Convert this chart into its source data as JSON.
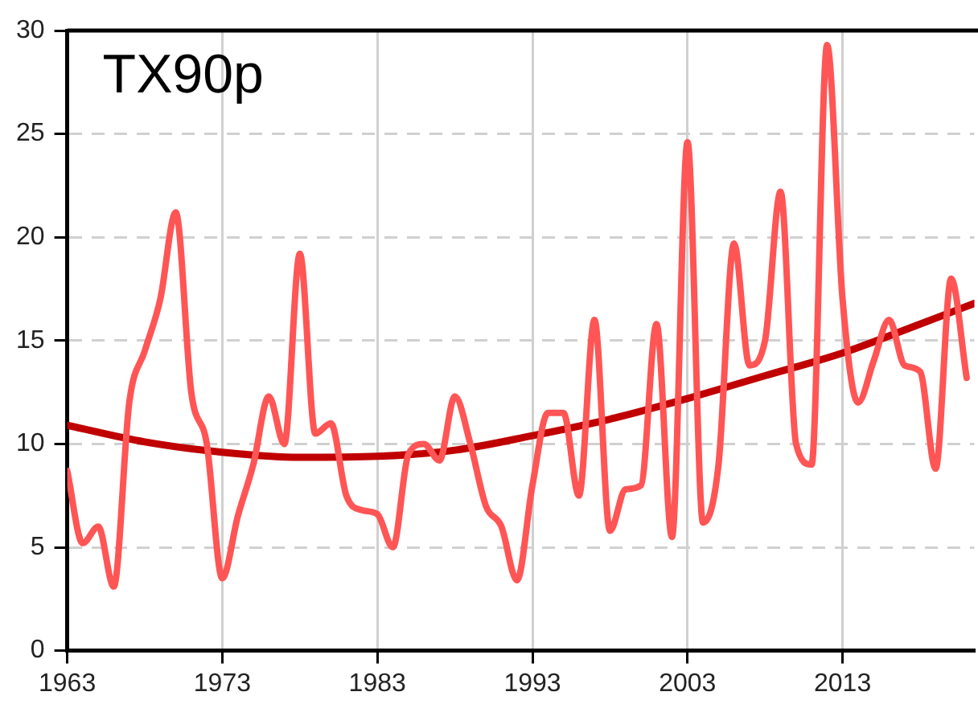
{
  "chart_data": {
    "type": "line",
    "title": "TX90p",
    "xlim": [
      1963,
      2021.5
    ],
    "xticks": [
      1963,
      1973,
      1983,
      1993,
      2003,
      2013
    ],
    "ylim": [
      0,
      30
    ],
    "yticks": [
      0,
      5,
      10,
      15,
      20,
      25,
      30
    ],
    "grid": true,
    "legend": false,
    "marker": "none",
    "line_style": "solid",
    "series": [
      {
        "color": "#ff5555",
        "x": [
          1963,
          1964,
          1965,
          1966,
          1967,
          1968,
          1969,
          1970,
          1971,
          1972,
          1973,
          1974,
          1975,
          1976,
          1977,
          1978,
          1979,
          1980,
          1981,
          1982,
          1983,
          1984,
          1985,
          1986,
          1987,
          1988,
          1989,
          1990,
          1991,
          1992,
          1993,
          1994,
          1995,
          1996,
          1997,
          1998,
          1999,
          2000,
          2001,
          2002,
          2003,
          2004,
          2005,
          2006,
          2007,
          2008,
          2009,
          2010,
          2011,
          2012,
          2013,
          2014,
          2015,
          2016,
          2017,
          2018,
          2019,
          2020,
          2021
        ],
        "values": [
          8.7,
          5.2,
          6.0,
          3.1,
          12.0,
          14.5,
          17.0,
          21.2,
          12.5,
          10.0,
          3.5,
          6.5,
          9.0,
          12.3,
          10.0,
          19.2,
          10.5,
          11.0,
          7.5,
          6.8,
          6.6,
          5.0,
          9.5,
          10.0,
          9.2,
          12.3,
          10.0,
          7.0,
          6.0,
          3.4,
          8.0,
          11.5,
          11.5,
          7.5,
          16.0,
          5.8,
          7.8,
          8.0,
          15.8,
          5.5,
          24.6,
          6.2,
          9.0,
          19.7,
          13.8,
          15.0,
          22.2,
          10.0,
          9.0,
          29.3,
          17.0,
          12.0,
          14.0,
          16.0,
          13.8,
          13.5,
          8.8,
          18.0,
          13.2
        ]
      },
      {
        "color": "#c00000",
        "x": [
          1963,
          1968,
          1973,
          1978,
          1983,
          1988,
          1993,
          1998,
          2003,
          2008,
          2013,
          2018,
          2021.5
        ],
        "values": [
          10.9,
          10.1,
          9.6,
          9.35,
          9.4,
          9.7,
          10.4,
          11.2,
          12.2,
          13.3,
          14.4,
          15.8,
          16.8
        ]
      }
    ]
  }
}
